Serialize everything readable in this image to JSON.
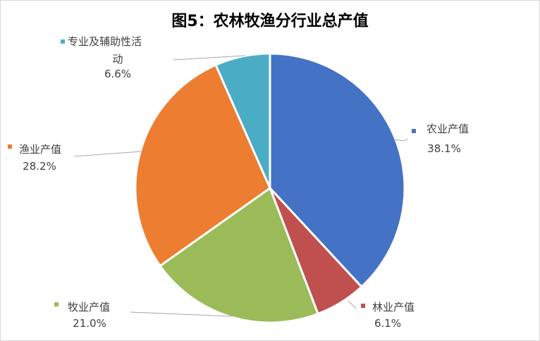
{
  "chart_data": {
    "type": "pie",
    "title": "图5：农林牧渔分行业总产值",
    "slices": [
      {
        "name": "农业产值",
        "value": 38.1,
        "label": "38.1%",
        "color": "#4472C4"
      },
      {
        "name": "林业产值",
        "value": 6.1,
        "label": "6.1%",
        "color": "#C0504D"
      },
      {
        "name": "牧业产值",
        "value": 21.0,
        "label": "21.0%",
        "color": "#9BBB59"
      },
      {
        "name": "渔业产值",
        "value": 28.2,
        "label": "28.2%",
        "color": "#ED7D31"
      },
      {
        "name_lines": [
          "专业及辅助性活",
          "动"
        ],
        "name": "专业及辅助性活动",
        "value": 6.6,
        "label": "6.6%",
        "color": "#4BACC6"
      }
    ],
    "start_angle": "12 o'clock",
    "direction": "clockwise"
  }
}
